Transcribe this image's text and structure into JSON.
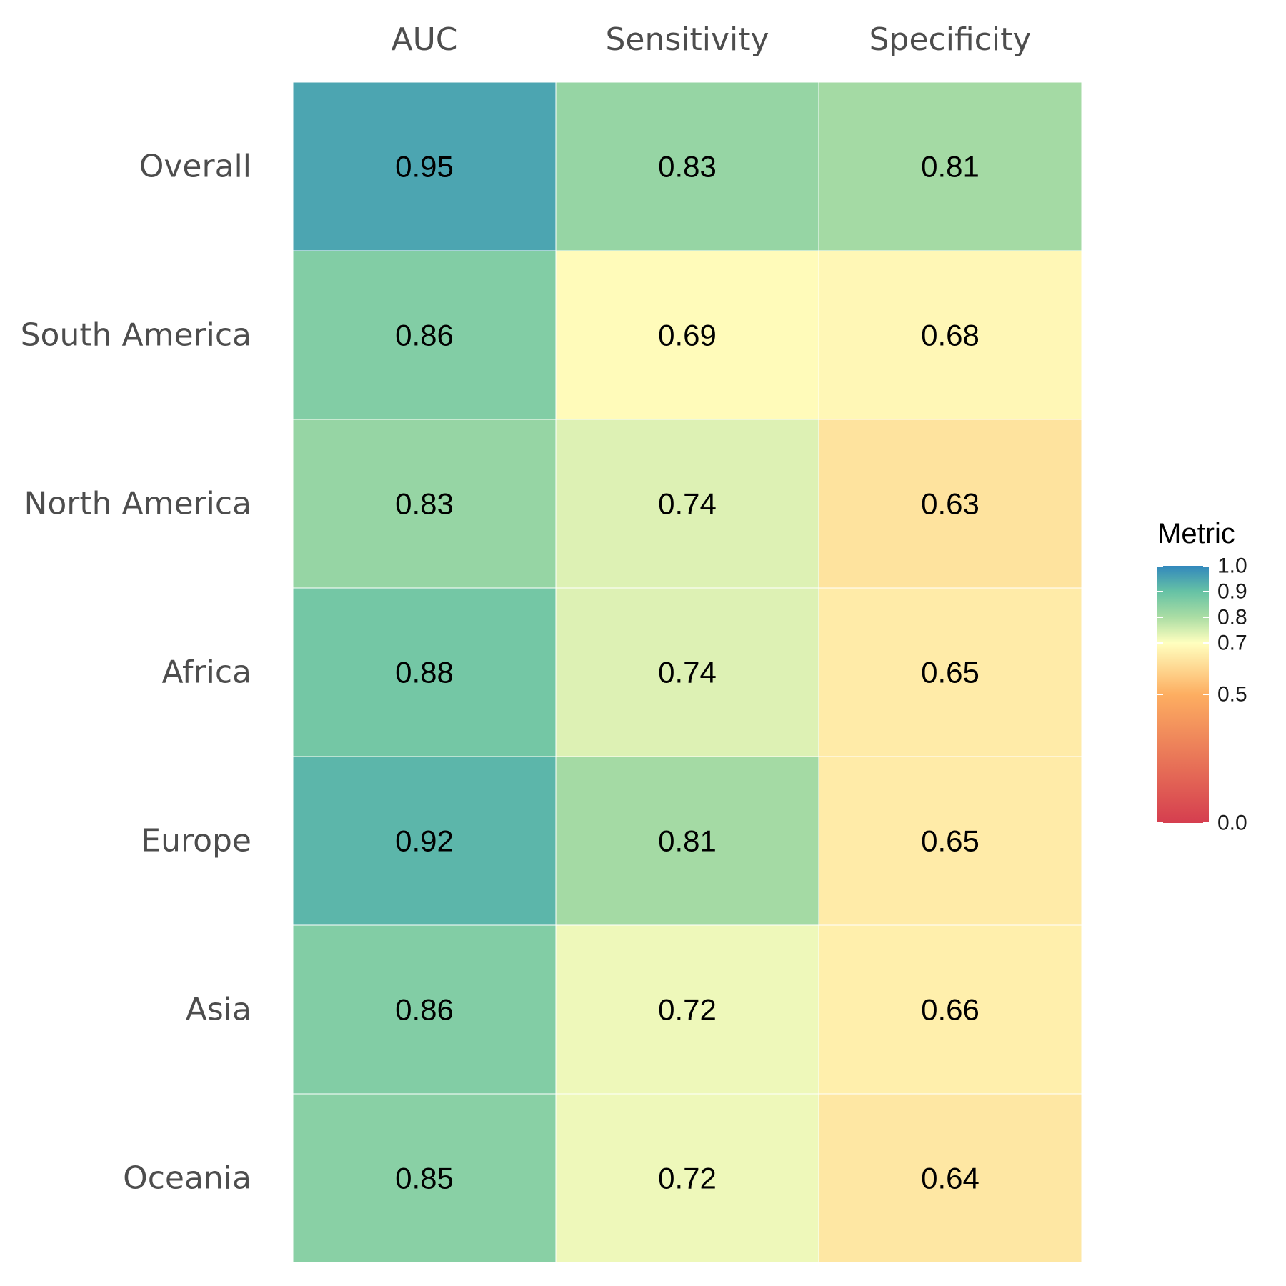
{
  "chart_data": {
    "type": "heatmap",
    "columns": [
      "AUC",
      "Sensitivity",
      "Specificity"
    ],
    "rows": [
      "Overall",
      "South America",
      "North America",
      "Africa",
      "Europe",
      "Asia",
      "Oceania"
    ],
    "values": [
      [
        0.95,
        0.83,
        0.81
      ],
      [
        0.86,
        0.69,
        0.68
      ],
      [
        0.83,
        0.74,
        0.63
      ],
      [
        0.88,
        0.74,
        0.65
      ],
      [
        0.92,
        0.81,
        0.65
      ],
      [
        0.86,
        0.72,
        0.66
      ],
      [
        0.85,
        0.72,
        0.64
      ]
    ],
    "labels": [
      [
        "0.95",
        "0.83",
        "0.81"
      ],
      [
        "0.86",
        "0.69",
        "0.68"
      ],
      [
        "0.83",
        "0.74",
        "0.63"
      ],
      [
        "0.88",
        "0.74",
        "0.65"
      ],
      [
        "0.92",
        "0.81",
        "0.65"
      ],
      [
        "0.86",
        "0.72",
        "0.66"
      ],
      [
        "0.85",
        "0.72",
        "0.64"
      ]
    ],
    "legend": {
      "title": "Metric",
      "position": "right",
      "breaks": [
        1.0,
        0.9,
        0.8,
        0.7,
        0.5,
        0.0
      ],
      "break_labels": [
        "1.0",
        "0.9",
        "0.8",
        "0.7",
        "0.5",
        "0.0"
      ],
      "scale_breaks": [
        0.0,
        0.5,
        0.7,
        0.8,
        0.9,
        1.0
      ],
      "palette": [
        "#d53e4f",
        "#fdae61",
        "#ffffbf",
        "#abdda4",
        "#66c2a5",
        "#3288bd"
      ]
    }
  }
}
